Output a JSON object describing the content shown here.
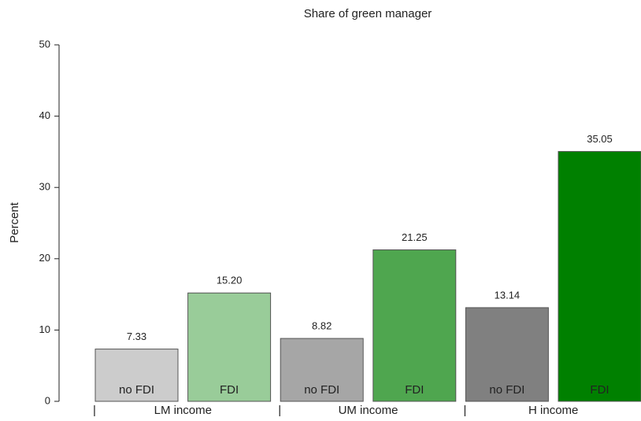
{
  "chart_data": {
    "type": "bar",
    "title": "Share of green manager",
    "ylabel": "Percent",
    "groups": [
      "LM income",
      "UM income",
      "H income"
    ],
    "group_separator": "|",
    "categories": [
      "no FDI",
      "FDI",
      "no FDI",
      "FDI",
      "no FDI",
      "FDI"
    ],
    "values": [
      7.33,
      15.2,
      8.82,
      21.25,
      13.14,
      35.05
    ],
    "value_labels": [
      "7.33",
      "15.20",
      "8.82",
      "21.25",
      "13.14",
      "35.05"
    ],
    "colors": [
      "#cccccc",
      "#99cc99",
      "#a6a6a6",
      "#4fa64f",
      "#808080",
      "#008000"
    ],
    "ylim": [
      0,
      50
    ],
    "yticks": [
      0,
      10,
      20,
      30,
      40,
      50
    ],
    "grid": false
  }
}
